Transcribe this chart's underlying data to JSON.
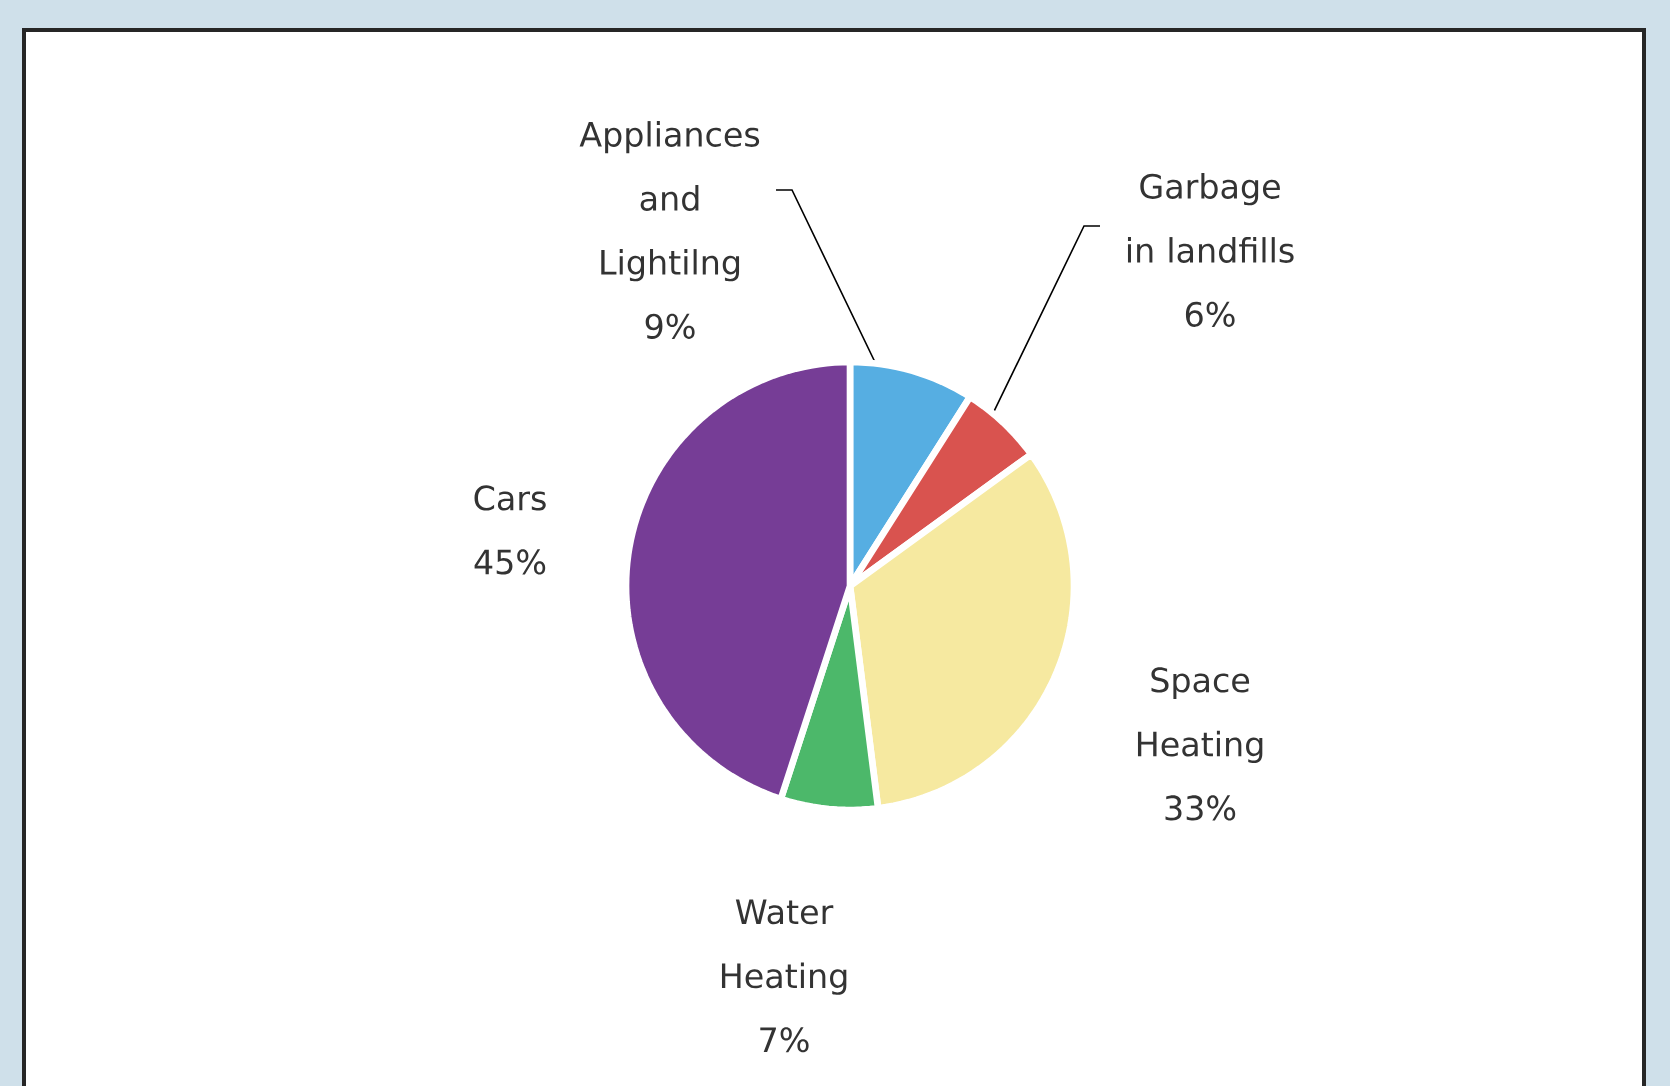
{
  "chart_data": {
    "type": "pie",
    "categories": [
      "Appliances and Lightilng",
      "Garbage in landfills",
      "Space Heating",
      "Water Heating",
      "Cars"
    ],
    "values": [
      9,
      6,
      33,
      7,
      45
    ],
    "value_labels": [
      "9%",
      "6%",
      "33%",
      "7%",
      "45%"
    ],
    "colors": [
      "#56aee2",
      "#d9534f",
      "#f6e9a0",
      "#4cb86a",
      "#763d96"
    ],
    "legend": false
  }
}
